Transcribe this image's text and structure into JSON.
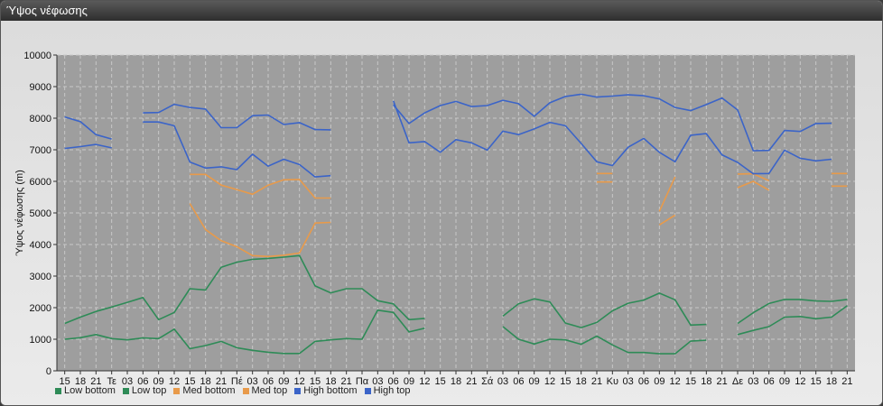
{
  "window": {
    "title": "Ύψος νέφωσης"
  },
  "chart_data": {
    "type": "line",
    "ylabel": "Ύψος νέφωσης (m)",
    "ylim": [
      0,
      10000
    ],
    "yticks": [
      0,
      1000,
      2000,
      3000,
      4000,
      5000,
      6000,
      7000,
      8000,
      9000,
      10000
    ],
    "grid": true,
    "legend_position": "bottom-left",
    "categories": [
      "15",
      "18",
      "21",
      "Τε",
      "03",
      "06",
      "09",
      "12",
      "15",
      "18",
      "21",
      "Πέ",
      "03",
      "06",
      "09",
      "12",
      "15",
      "18",
      "21",
      "Πα",
      "03",
      "06",
      "09",
      "12",
      "15",
      "18",
      "21",
      "Σά",
      "03",
      "06",
      "09",
      "12",
      "15",
      "18",
      "21",
      "Κυ",
      "03",
      "06",
      "09",
      "12",
      "15",
      "18",
      "21",
      "Δε",
      "03",
      "06",
      "09",
      "12",
      "15",
      "18",
      "21"
    ],
    "series": [
      {
        "name": "Low bottom",
        "color": "#2e8b57",
        "values": [
          1000,
          1050,
          1150,
          1020,
          980,
          1040,
          1020,
          1320,
          700,
          800,
          930,
          730,
          650,
          590,
          550,
          550,
          930,
          980,
          1020,
          1000,
          1920,
          1850,
          1230,
          1350,
          null,
          null,
          null,
          null,
          1400,
          1000,
          850,
          1000,
          980,
          840,
          1100,
          820,
          580,
          580,
          540,
          540,
          940,
          970,
          null,
          1150,
          1280,
          1400,
          1700,
          1720,
          1650,
          1700,
          2060
        ]
      },
      {
        "name": "Low top",
        "color": "#2e8b57",
        "values": [
          1500,
          1700,
          1880,
          2020,
          2170,
          2320,
          1620,
          1850,
          2600,
          2560,
          3280,
          3440,
          3530,
          3560,
          3600,
          3650,
          2690,
          2470,
          2600,
          2600,
          2220,
          2120,
          1620,
          1660,
          null,
          null,
          null,
          null,
          1730,
          2120,
          2280,
          2180,
          1510,
          1370,
          1530,
          1900,
          2140,
          2240,
          2460,
          2250,
          1450,
          1470,
          null,
          1500,
          1840,
          2130,
          2260,
          2260,
          2210,
          2200,
          2260
        ]
      },
      {
        "name": "Med bottom",
        "color": "#e89a4a",
        "values": [
          null,
          null,
          null,
          null,
          null,
          null,
          null,
          null,
          5300,
          4470,
          4120,
          3930,
          3650,
          3620,
          3660,
          3730,
          4680,
          4700,
          null,
          null,
          null,
          null,
          null,
          null,
          null,
          null,
          null,
          null,
          null,
          null,
          null,
          null,
          null,
          null,
          5980,
          5980,
          null,
          null,
          4620,
          4930,
          null,
          null,
          null,
          5800,
          6000,
          5720,
          null,
          null,
          null,
          5850,
          5850
        ]
      },
      {
        "name": "Med top",
        "color": "#e89a4a",
        "values": [
          null,
          null,
          null,
          null,
          null,
          null,
          null,
          null,
          6220,
          6220,
          5880,
          5740,
          5590,
          5880,
          6050,
          6060,
          5470,
          5470,
          null,
          null,
          null,
          null,
          null,
          null,
          null,
          null,
          null,
          null,
          null,
          null,
          null,
          null,
          null,
          null,
          6250,
          6250,
          null,
          null,
          5050,
          6140,
          null,
          null,
          null,
          6230,
          6240,
          6020,
          null,
          null,
          null,
          6250,
          6250
        ]
      },
      {
        "name": "High bottom",
        "color": "#3b64c8",
        "values": [
          7040,
          7100,
          7170,
          7060,
          null,
          7880,
          7880,
          7760,
          6610,
          6420,
          6460,
          6370,
          6860,
          6480,
          6700,
          6530,
          6140,
          6180,
          null,
          null,
          null,
          8550,
          7220,
          7260,
          6920,
          7320,
          7220,
          6990,
          7590,
          7480,
          7660,
          7870,
          7760,
          7200,
          6620,
          6500,
          7080,
          7360,
          6920,
          6620,
          7460,
          7510,
          6840,
          6600,
          6240,
          6250,
          6990,
          6730,
          6650,
          6700,
          null
        ]
      },
      {
        "name": "High top",
        "color": "#3b64c8",
        "values": [
          8040,
          7890,
          7480,
          7340,
          null,
          8170,
          8180,
          8440,
          8340,
          8290,
          7700,
          7700,
          8080,
          8100,
          7800,
          7860,
          7640,
          7630,
          null,
          null,
          null,
          8420,
          7830,
          8170,
          8400,
          8530,
          8370,
          8400,
          8570,
          8460,
          8060,
          8490,
          8690,
          8760,
          8670,
          8700,
          8740,
          8710,
          8610,
          8340,
          8240,
          8430,
          8640,
          8260,
          6970,
          6980,
          7610,
          7580,
          7830,
          7840,
          null
        ]
      }
    ]
  }
}
